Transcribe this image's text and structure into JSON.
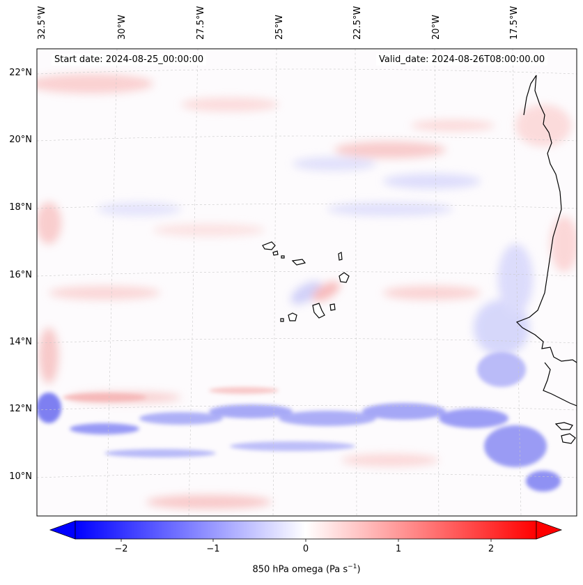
{
  "map": {
    "start_date": "Start date: 2024-08-25_00:00:00",
    "valid_date": "Valid_date: 2024-08-26T08:00:00.00",
    "lon_labels": [
      "32.5°W",
      "30°W",
      "27.5°W",
      "25°W",
      "22.5°W",
      "20°W",
      "17.5°W"
    ],
    "lat_labels": [
      "22°N",
      "20°N",
      "18°N",
      "16°N",
      "14°N",
      "12°N",
      "10°N"
    ],
    "field": "850 hPa omega",
    "colormap": "bwr",
    "gridlines": true
  },
  "colorbar": {
    "label_main": "850 hPa omega (Pa s",
    "label_exp": "−1",
    "label_close": ")",
    "ticks": [
      "−2",
      "−1",
      "0",
      "1",
      "2"
    ],
    "range": [
      -2.5,
      2.5
    ],
    "extend": "both",
    "colors": {
      "min": "#0000ff",
      "mid": "#ffffff",
      "max": "#ff0000"
    }
  }
}
